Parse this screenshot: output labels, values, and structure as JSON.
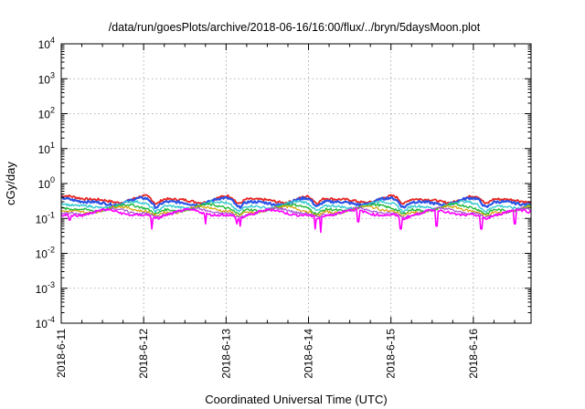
{
  "chart_data": {
    "type": "line",
    "title": "/data/run/goesPlots/archive/2018-06-16/16:00/flux/../bryn/5daysMoon.plot",
    "xlabel": "Coordinated Universal Time (UTC)",
    "ylabel": "cGy/day",
    "yscale": "log",
    "ylim": [
      0.0001,
      10000
    ],
    "y_ticks": [
      {
        "exp": "-4"
      },
      {
        "exp": "-3"
      },
      {
        "exp": "-2"
      },
      {
        "exp": "-1"
      },
      {
        "exp": "0"
      },
      {
        "exp": "1"
      },
      {
        "exp": "2"
      },
      {
        "exp": "3"
      },
      {
        "exp": "4"
      }
    ],
    "x_tick_labels": [
      "2018-6-11",
      "2018-6-12",
      "2018-6-13",
      "2018-6-14",
      "2018-6-15",
      "2018-6-16"
    ],
    "xlim_days": [
      0,
      5.7
    ],
    "grid": true,
    "legend": "none",
    "series": [
      {
        "color": "#e8251f",
        "level": 0.36,
        "dip": 0.8,
        "phase": 0.9,
        "width": 1.8
      },
      {
        "color": "#2a52e6",
        "level": 0.31,
        "dip": 0.82,
        "phase": 1.3,
        "width": 2.2
      },
      {
        "color": "#33c9d1",
        "level": 0.245,
        "dip": 0.7,
        "phase": 2.1,
        "width": 1.4
      },
      {
        "color": "#1fb83a",
        "level": 0.2,
        "dip": 0.6,
        "phase": 2.7,
        "width": 1.4
      },
      {
        "color": "#d4a300",
        "level": 0.175,
        "dip": 0.55,
        "phase": 3.3,
        "width": 1.2
      },
      {
        "color": "#a54fd0",
        "level": 0.155,
        "dip": 0.45,
        "phase": 3.9,
        "width": 1.2
      },
      {
        "color": "#ff00ff",
        "level": 0.14,
        "dip": 0.4,
        "phase": 4.4,
        "width": 1.6
      }
    ],
    "dip_days": [
      1.15,
      2.15,
      3.1,
      4.15,
      5.15
    ],
    "spikes": [
      {
        "day": 0.1,
        "min": 0.09
      },
      {
        "day": 1.1,
        "min": 0.05
      },
      {
        "day": 1.75,
        "min": 0.07
      },
      {
        "day": 2.13,
        "min": 0.07
      },
      {
        "day": 2.17,
        "min": 0.06
      },
      {
        "day": 3.08,
        "min": 0.05
      },
      {
        "day": 3.15,
        "min": 0.04
      },
      {
        "day": 3.6,
        "min": 0.08
      },
      {
        "day": 4.12,
        "min": 0.05
      },
      {
        "day": 4.55,
        "min": 0.06
      },
      {
        "day": 5.1,
        "min": 0.05
      },
      {
        "day": 5.5,
        "min": 0.07
      }
    ]
  }
}
